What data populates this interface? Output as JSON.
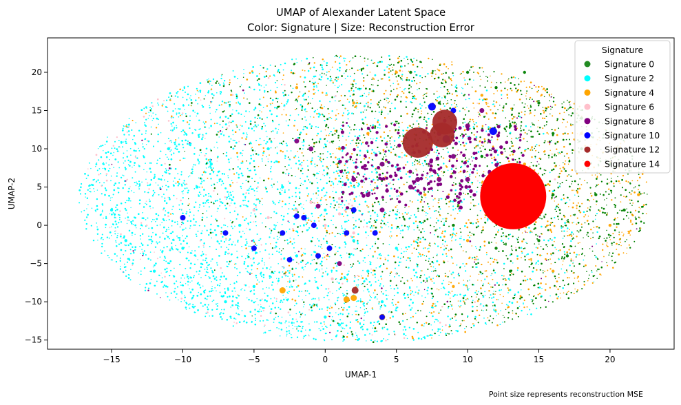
{
  "chart_data": {
    "type": "scatter",
    "title": "UMAP of Alexander Latent Space",
    "subtitle": "Color: Signature | Size: Reconstruction Error",
    "xlabel": "UMAP-1",
    "ylabel": "UMAP-2",
    "xlim": [
      -19.5,
      24.5
    ],
    "ylim": [
      -16.2,
      24.5
    ],
    "xticks": [
      -15,
      -10,
      -5,
      0,
      5,
      10,
      15,
      20
    ],
    "yticks": [
      -15,
      -10,
      -5,
      0,
      5,
      10,
      15,
      20
    ],
    "xtick_labels": [
      "−15",
      "−10",
      "−5",
      "0",
      "5",
      "10",
      "15",
      "20"
    ],
    "ytick_labels": [
      "−15",
      "−10",
      "−5",
      "0",
      "5",
      "10",
      "15",
      "20"
    ],
    "grid": false,
    "legend": {
      "title": "Signature",
      "placement": "upper-right",
      "entries": [
        {
          "label": "Signature 0",
          "color": "#228b22"
        },
        {
          "label": "Signature 2",
          "color": "#00ffff"
        },
        {
          "label": "Signature 4",
          "color": "#ffa500"
        },
        {
          "label": "Signature 6",
          "color": "#ffc0cb"
        },
        {
          "label": "Signature 8",
          "color": "#800080"
        },
        {
          "label": "Signature 10",
          "color": "#0000ff"
        },
        {
          "label": "Signature 12",
          "color": "#a52a2a"
        },
        {
          "label": "Signature 14",
          "color": "#ff0000"
        }
      ]
    },
    "series": [
      {
        "name": "Signature 0",
        "color": "#008000",
        "points": [
          [
            12,
            18
          ],
          [
            15,
            16
          ],
          [
            10,
            20
          ],
          [
            18,
            14
          ],
          [
            20,
            8
          ],
          [
            16,
            12
          ],
          [
            14,
            20
          ],
          [
            19,
            4
          ],
          [
            17,
            -4
          ],
          [
            13,
            -6
          ],
          [
            11,
            9
          ],
          [
            8,
            16
          ],
          [
            6,
            20
          ],
          [
            21,
            2
          ],
          [
            15,
            -2
          ],
          [
            12,
            -3
          ],
          [
            9,
            0
          ],
          [
            18,
            10
          ],
          [
            13,
            13
          ],
          [
            16,
            4
          ]
        ]
      },
      {
        "name": "Signature 2",
        "color": "#00ffff",
        "points": [
          [
            -15,
            2
          ],
          [
            -10,
            -3
          ],
          [
            -5,
            -8
          ],
          [
            0,
            -12
          ],
          [
            -3,
            5
          ],
          [
            -8,
            8
          ],
          [
            -12,
            -6
          ],
          [
            2,
            -2
          ],
          [
            -6,
            0
          ],
          [
            4,
            -10
          ],
          [
            -2,
            -4
          ],
          [
            1,
            -13
          ],
          [
            -14,
            -2
          ],
          [
            -9,
            5
          ],
          [
            -4,
            10
          ],
          [
            0,
            2
          ],
          [
            3,
            -6
          ],
          [
            -7,
            -10
          ],
          [
            -11,
            10
          ],
          [
            5,
            -3
          ]
        ]
      },
      {
        "name": "Signature 4",
        "color": "#ffa500",
        "points": [
          [
            5,
            20
          ],
          [
            8,
            14
          ],
          [
            2,
            16
          ],
          [
            12,
            6
          ],
          [
            16,
            -6
          ],
          [
            20,
            0
          ],
          [
            7,
            4
          ],
          [
            1,
            10
          ],
          [
            -2,
            18
          ],
          [
            10,
            -2
          ],
          [
            14,
            8
          ],
          [
            18,
            12
          ],
          [
            3,
            12
          ],
          [
            9,
            -8
          ],
          [
            22,
            4
          ],
          [
            -3,
            -8.5
          ],
          [
            2,
            -9.5
          ],
          [
            4,
            -12
          ],
          [
            1.5,
            -9.7
          ],
          [
            11,
            17
          ]
        ]
      },
      {
        "name": "Signature 6",
        "color": "#ffc0cb",
        "points": [
          [
            -2,
            2
          ],
          [
            0,
            0
          ],
          [
            1,
            1.5
          ],
          [
            -1,
            3
          ],
          [
            -4,
            1
          ],
          [
            2,
            -1
          ],
          [
            0.5,
            -7
          ],
          [
            -3,
            -1
          ],
          [
            1,
            3.5
          ],
          [
            -5,
            2
          ]
        ]
      },
      {
        "name": "Signature 8",
        "color": "#800080",
        "points": [
          [
            2,
            6
          ],
          [
            4,
            8
          ],
          [
            6,
            5
          ],
          [
            8,
            6
          ],
          [
            9,
            9
          ],
          [
            10,
            6
          ],
          [
            12,
            3
          ],
          [
            13,
            2
          ],
          [
            14,
            4
          ],
          [
            6.5,
            6
          ],
          [
            3,
            4
          ],
          [
            -0.5,
            2.5
          ],
          [
            1,
            -5
          ],
          [
            4,
            2
          ],
          [
            8,
            12
          ],
          [
            10,
            13
          ],
          [
            11,
            15
          ],
          [
            -2,
            11
          ],
          [
            -1,
            10
          ]
        ]
      },
      {
        "name": "Signature 10",
        "color": "#0000ff",
        "points": [
          [
            7.5,
            15.5
          ],
          [
            11.8,
            12.3
          ],
          [
            8.5,
            11.3
          ],
          [
            -1.5,
            1
          ],
          [
            -0.8,
            0
          ],
          [
            -2,
            1.2
          ],
          [
            -3,
            -1
          ],
          [
            3.5,
            -1
          ],
          [
            0.3,
            -3
          ],
          [
            -10,
            1
          ],
          [
            -7,
            -1
          ],
          [
            1.5,
            -1
          ],
          [
            -0.5,
            -4
          ],
          [
            -2.5,
            -4.5
          ],
          [
            2,
            2
          ],
          [
            -5,
            -3
          ],
          [
            9,
            15
          ],
          [
            4,
            -12
          ]
        ]
      },
      {
        "name": "Signature 12",
        "color": "#a52a2a",
        "points": [
          [
            6.5,
            10.8
          ],
          [
            8.2,
            11.8
          ],
          [
            8.4,
            13.5
          ],
          [
            2.1,
            -8.5
          ]
        ]
      },
      {
        "name": "Signature 14",
        "color": "#ff0000",
        "points": [
          [
            13.2,
            3.8
          ]
        ]
      }
    ],
    "annotation": "Point size represents reconstruction MSE"
  }
}
